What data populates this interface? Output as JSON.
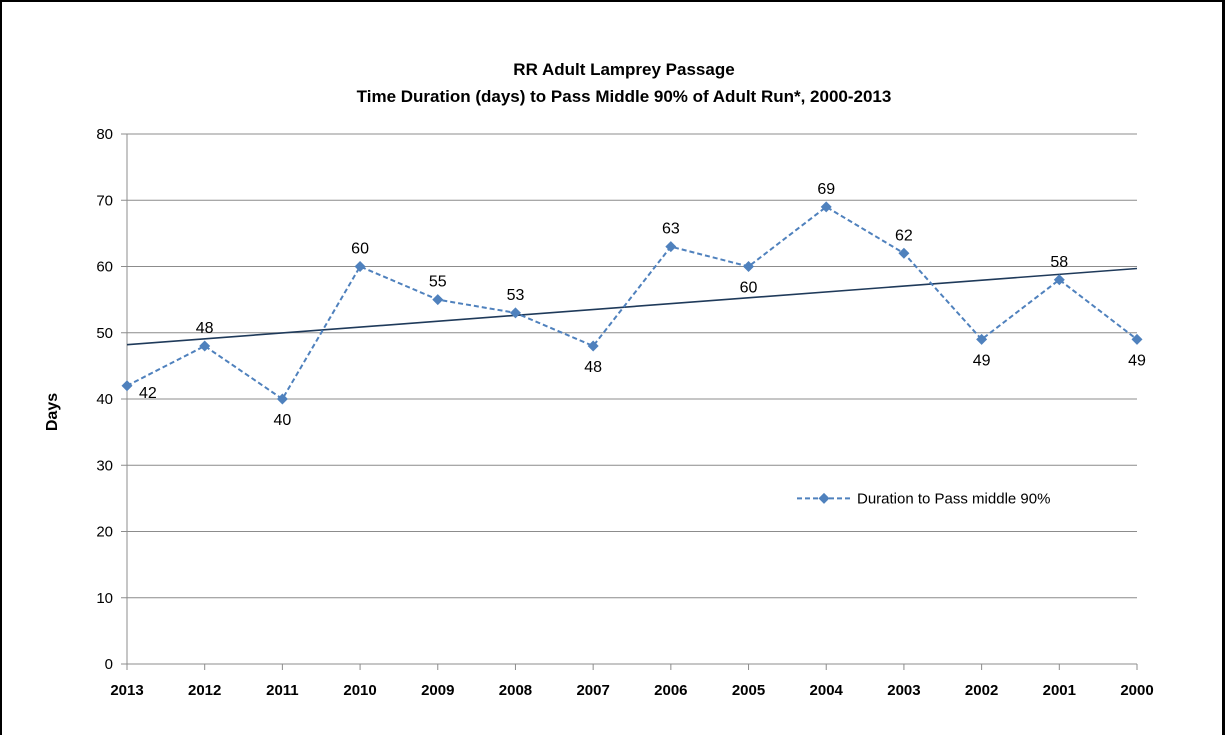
{
  "chart_data": {
    "type": "line",
    "title": "RR Adult Lamprey Passage",
    "subtitle": "Time Duration (days) to Pass Middle 90% of Adult Run*, 2000-2013",
    "xlabel": "",
    "ylabel": "Days",
    "categories": [
      "2013",
      "2012",
      "2011",
      "2010",
      "2009",
      "2008",
      "2007",
      "2006",
      "2005",
      "2004",
      "2003",
      "2002",
      "2001",
      "2000"
    ],
    "series": [
      {
        "name": "Duration to Pass middle 90%",
        "values": [
          42,
          48,
          40,
          60,
          55,
          53,
          48,
          63,
          60,
          69,
          62,
          49,
          58,
          49
        ],
        "color": "#4F81BD",
        "style": "dashed",
        "marker": "diamond"
      }
    ],
    "trendline": {
      "type": "linear",
      "start": 48.2,
      "end": 59.7,
      "color": "#1F3A5A"
    },
    "ylim": [
      0,
      80
    ],
    "yticks": [
      0,
      10,
      20,
      30,
      40,
      50,
      60,
      70,
      80
    ],
    "grid": true,
    "legend_position": "right"
  }
}
